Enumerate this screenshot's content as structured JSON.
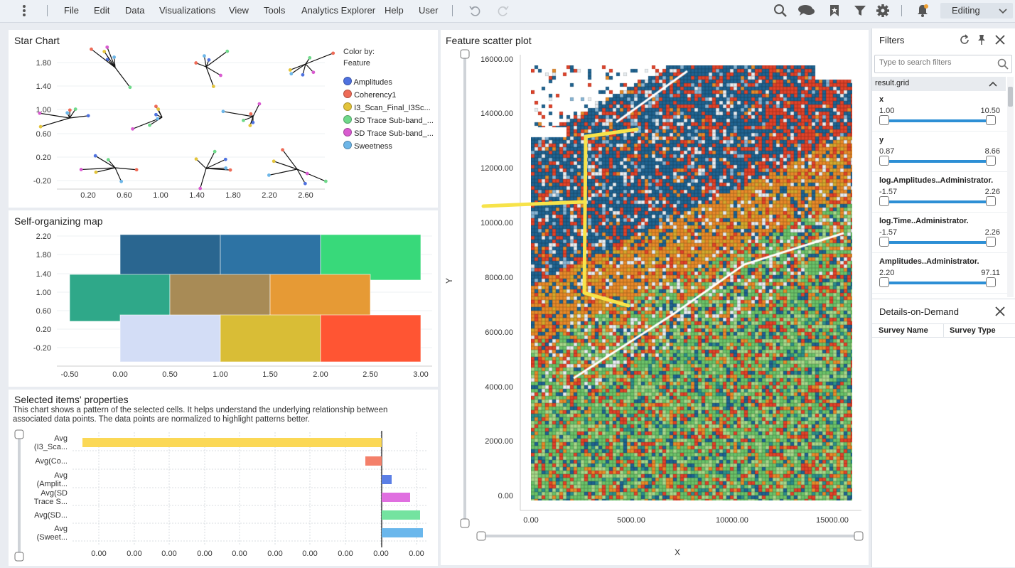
{
  "menubar": {
    "items": [
      "File",
      "Edit",
      "Data",
      "Visualizations",
      "View",
      "Tools",
      "Analytics Explorer",
      "Help",
      "User"
    ],
    "mode": "Editing"
  },
  "star_chart": {
    "title": "Star Chart",
    "color_by_label": "Color by:",
    "color_by_value": "Feature",
    "legend": [
      {
        "label": "Amplitudes",
        "color": "#4f72e0"
      },
      {
        "label": "Coherency1",
        "color": "#ee6b57"
      },
      {
        "label": "I3_Scan_Final_I3Sc...",
        "color": "#e3c43b"
      },
      {
        "label": "SD Trace Sub-band_...",
        "color": "#6fd98a"
      },
      {
        "label": "SD Trace Sub-band_...",
        "color": "#d95bd0"
      },
      {
        "label": "Sweetness",
        "color": "#6db6e8"
      }
    ],
    "y_ticks": [
      "1.80",
      "1.40",
      "1.00",
      "0.60",
      "0.20",
      "-0.20"
    ],
    "x_ticks": [
      "0.20",
      "0.60",
      "1.00",
      "1.40",
      "1.80",
      "2.20",
      "2.60"
    ]
  },
  "som": {
    "title": "Self-organizing map",
    "y_ticks": [
      "2.20",
      "1.80",
      "1.40",
      "1.00",
      "0.60",
      "0.20",
      "-0.20"
    ],
    "x_ticks": [
      "-0.50",
      "0.00",
      "0.50",
      "1.00",
      "1.50",
      "2.00",
      "2.50",
      "3.00"
    ]
  },
  "selected_props": {
    "title": "Selected items' properties",
    "description": "This chart shows a pattern of the selected cells. It helps understand the underlying relationship between associated data points. The data points are normalized to highlight patterns better.",
    "categories": [
      [
        "Avg",
        "(I3_Sca..."
      ],
      [
        "Avg(Co..."
      ],
      [
        "Avg",
        "(Amplit..."
      ],
      [
        "Avg(SD",
        "Trace S..."
      ],
      [
        "Avg(SD..."
      ],
      [
        "Avg",
        "(Sweet..."
      ]
    ],
    "colors": [
      "#fbd856",
      "#f4806a",
      "#5b7fe6",
      "#e06fe0",
      "#74e3a0",
      "#6ab7ec"
    ],
    "x_ticks": [
      "0.00",
      "0.00",
      "0.00",
      "0.00",
      "0.00",
      "0.00",
      "0.00",
      "0.00",
      "0.00",
      "0.00"
    ]
  },
  "scatter": {
    "title": "Feature scatter plot",
    "x_label": "X",
    "y_label": "Y",
    "y_ticks": [
      "16000.00",
      "14000.00",
      "12000.00",
      "10000.00",
      "8000.00",
      "6000.00",
      "4000.00",
      "2000.00",
      "0.00"
    ],
    "x_ticks": [
      "0.00",
      "5000.00",
      "10000.00",
      "15000.00"
    ]
  },
  "filters": {
    "title": "Filters",
    "search_placeholder": "Type to search filters",
    "group": "result.grid",
    "items": [
      {
        "name": "x",
        "min": "1.00",
        "max": "10.50"
      },
      {
        "name": "y",
        "min": "0.87",
        "max": "8.66"
      },
      {
        "name": "log.Amplitudes..Administrator.",
        "min": "-1.57",
        "max": "2.26"
      },
      {
        "name": "log.Time..Administrator.",
        "min": "-1.57",
        "max": "2.26"
      },
      {
        "name": "Amplitudes..Administrator.",
        "min": "2.20",
        "max": "97.11"
      }
    ]
  },
  "details": {
    "title": "Details-on-Demand",
    "columns": [
      "Survey Name",
      "Survey Type"
    ]
  }
}
